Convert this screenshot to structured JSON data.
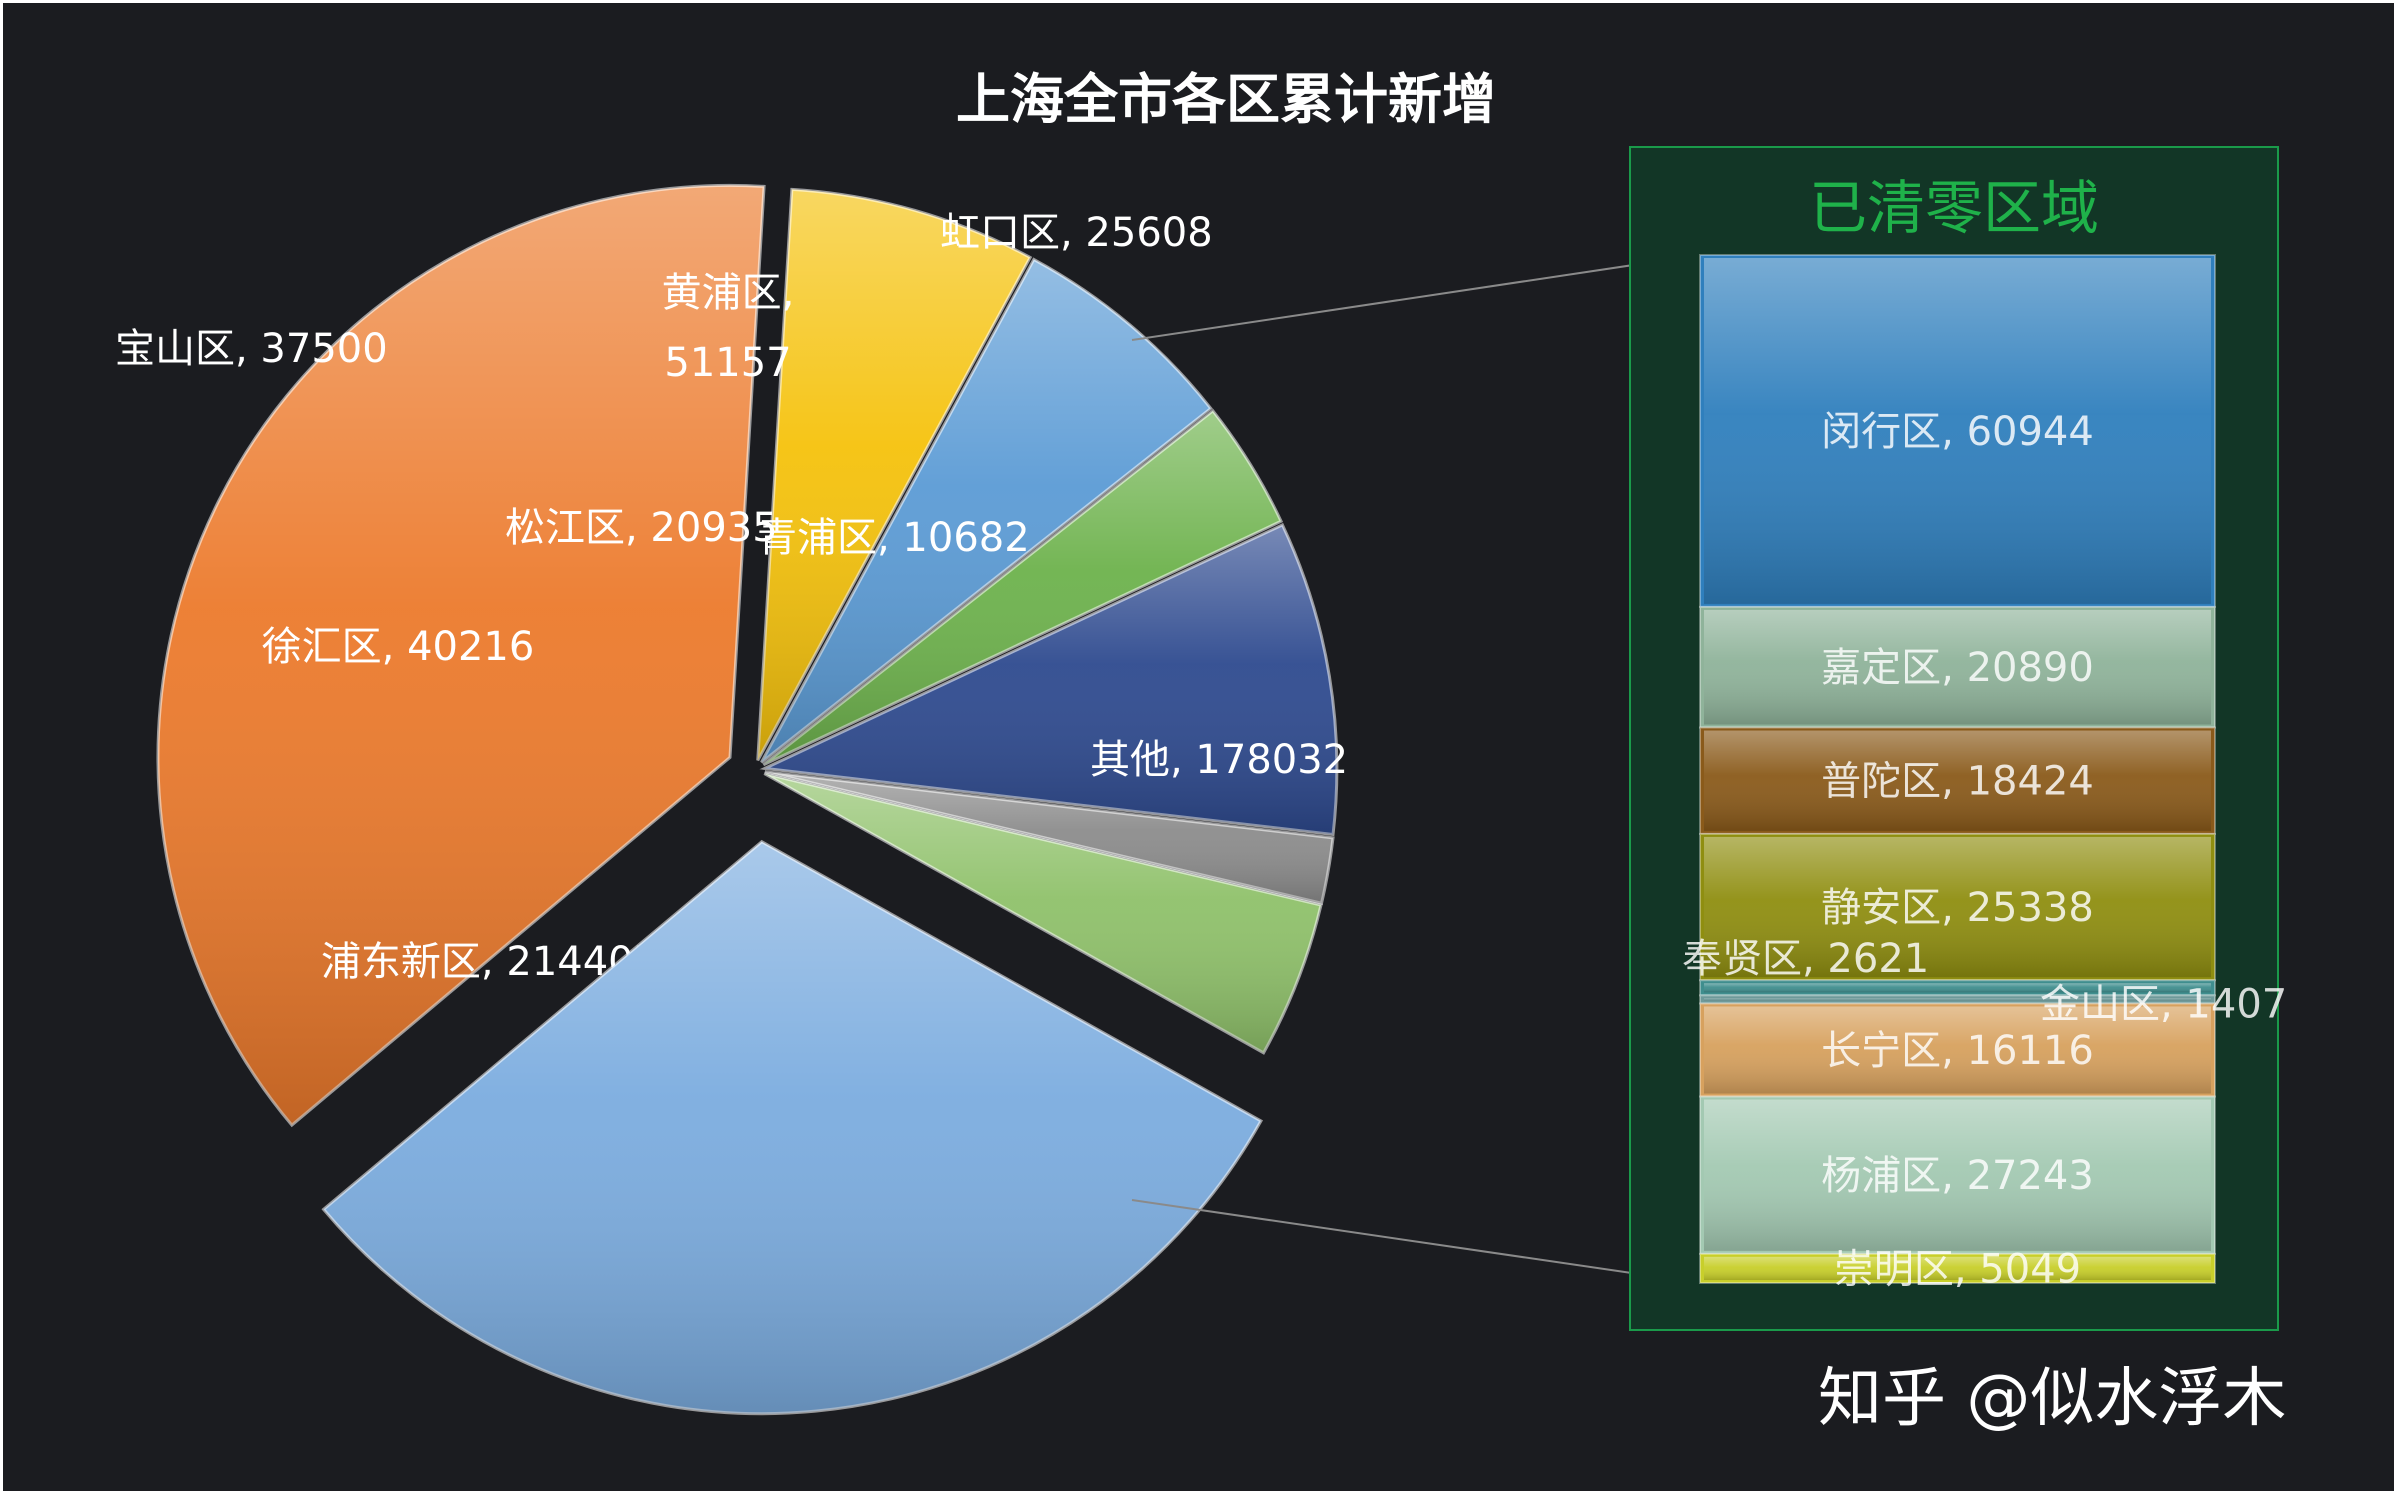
{
  "chart_data": {
    "type": "pie",
    "variant": "bar-of-pie",
    "title": "上海全市各区累计新增",
    "slices": [
      {
        "label": "浦东新区",
        "value": 214407,
        "text": "浦东新区, 214407",
        "color": "#ec7a2c"
      },
      {
        "label": "徐汇区",
        "value": 40216,
        "text": "徐汇区, 40216",
        "color": "#f5c20c"
      },
      {
        "label": "宝山区",
        "value": 37500,
        "text": "宝山区, 37500",
        "color": "#5b9bd5"
      },
      {
        "label": "松江区",
        "value": 20935,
        "text": "松江区, 20935",
        "color": "#6db24c"
      },
      {
        "label": "黄浦区",
        "value": 51157,
        "text_lines": [
          "黄浦区,",
          "51157"
        ],
        "color": "#2e4a8f"
      },
      {
        "label": "青浦区",
        "value": 10682,
        "text": "青浦区, 10682",
        "color": "#8c8c8c"
      },
      {
        "label": "虹口区",
        "value": 25608,
        "text": "虹口区, 25608",
        "color": "#8fc16a"
      },
      {
        "label": "其他",
        "value": 178032,
        "text": "其他, 178032",
        "color": "#7bacdf"
      }
    ],
    "secondary": {
      "title": "已清零区域",
      "items": [
        {
          "label": "闵行区",
          "value": 60944,
          "text": "闵行区, 60944",
          "color": "#2f7fbd"
        },
        {
          "label": "嘉定区",
          "value": 20890,
          "text": "嘉定区, 20890",
          "color": "#8fb39a"
        },
        {
          "label": "普陀区",
          "value": 18424,
          "text": "普陀区, 18424",
          "color": "#8a5a1a"
        },
        {
          "label": "静安区",
          "value": 25338,
          "text": "静安区, 25338",
          "color": "#8f8e10"
        },
        {
          "label": "奉贤区",
          "value": 2621,
          "text": "奉贤区, 2621",
          "color": "#3f8e8e"
        },
        {
          "label": "金山区",
          "value": 1407,
          "text": "金山区, 1407",
          "color": "#6e9a9a"
        },
        {
          "label": "长宁区",
          "value": 16116,
          "text": "长宁区, 16116",
          "color": "#d7a15e"
        },
        {
          "label": "杨浦区",
          "value": 27243,
          "text": "杨浦区, 27243",
          "color": "#a3c9b2"
        },
        {
          "label": "崇明区",
          "value": 5049,
          "text": "崇明区, 5049",
          "color": "#c8cf2a"
        }
      ]
    }
  },
  "watermark": "知乎 @似水浮木",
  "colors": {
    "background": "#1b1c20",
    "text": "#ffffff",
    "box_fill": "#123626",
    "box_border": "#1a9a4a",
    "box_title": "#1fb24a"
  }
}
